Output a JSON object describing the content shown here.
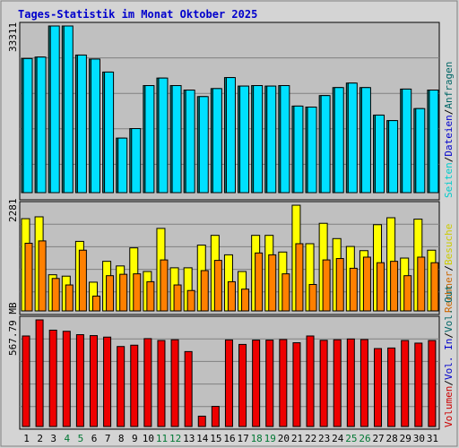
{
  "title": "Tages-Statistik im Monat Oktober 2025",
  "colors": {
    "title": "#0000cc",
    "panel_bg": "#c0c0c0",
    "outer_bg": "#d4d4d4",
    "grid": "#808080",
    "anfragen": "#006666",
    "dateien": "#0000cc",
    "seiten": "#00cccc",
    "besuche": "#cccc00",
    "rechner": "#cc6600",
    "volumen": "#cc0000",
    "vol_in": "#0000cc",
    "vol_out": "#006666",
    "bar_dateien": "#008080",
    "bar_seiten": "#00e0ff",
    "bar_besuche": "#ffff00",
    "bar_rechner": "#ff8000",
    "bar_volumen": "#ee0000",
    "day_black": "#000000",
    "day_weekend": "#007733"
  },
  "chart_data": [
    {
      "type": "bar",
      "panel": "hits",
      "max_label": "33311",
      "ylim": [
        0,
        33311
      ],
      "grid": true,
      "categories": [
        "1",
        "2",
        "3",
        "4",
        "5",
        "6",
        "7",
        "8",
        "9",
        "10",
        "11",
        "12",
        "13",
        "14",
        "15",
        "16",
        "17",
        "18",
        "19",
        "20",
        "21",
        "22",
        "23",
        "24",
        "25",
        "26",
        "27",
        "28",
        "29",
        "30",
        "31"
      ],
      "legend": [
        "Anfragen",
        "Dateien",
        "Seiten"
      ],
      "series": [
        {
          "name": "Dateien",
          "values": [
            26800,
            27100,
            33311,
            33311,
            27500,
            26700,
            24100,
            10900,
            12800,
            21400,
            22900,
            21400,
            20500,
            19200,
            20800,
            23000,
            21300,
            21400,
            21300,
            21400,
            17300,
            17100,
            19400,
            21000,
            21900,
            21000,
            15500,
            14400,
            20700,
            16800,
            20500
          ]
        },
        {
          "name": "Seiten",
          "values": [
            26800,
            27100,
            33311,
            33311,
            27500,
            26700,
            24100,
            10900,
            12800,
            21400,
            22900,
            21400,
            20500,
            19200,
            20800,
            23000,
            21300,
            21400,
            21300,
            21400,
            17300,
            17100,
            19400,
            21000,
            21900,
            21000,
            15500,
            14400,
            20700,
            16800,
            20500
          ]
        }
      ]
    },
    {
      "type": "bar",
      "panel": "visits",
      "max_label": "2281",
      "ylim": [
        0,
        2281
      ],
      "grid": true,
      "categories": [
        "1",
        "2",
        "3",
        "4",
        "5",
        "6",
        "7",
        "8",
        "9",
        "10",
        "11",
        "12",
        "13",
        "14",
        "15",
        "16",
        "17",
        "18",
        "19",
        "20",
        "21",
        "22",
        "23",
        "24",
        "25",
        "26",
        "27",
        "28",
        "29",
        "30",
        "31"
      ],
      "legend": [
        "Besuche",
        "Rechner"
      ],
      "series": [
        {
          "name": "Besuche",
          "values": [
            1990,
            2030,
            780,
            750,
            1500,
            620,
            1070,
            970,
            1360,
            850,
            1780,
            930,
            930,
            1420,
            1630,
            1210,
            850,
            1630,
            1630,
            1270,
            2280,
            1450,
            1890,
            1560,
            1390,
            1300,
            1860,
            2010,
            1140,
            1980,
            1310
          ]
        },
        {
          "name": "Rechner",
          "values": [
            1460,
            1510,
            700,
            560,
            1310,
            320,
            760,
            790,
            800,
            630,
            1100,
            560,
            440,
            870,
            1090,
            630,
            470,
            1250,
            1210,
            800,
            1450,
            570,
            1100,
            1130,
            920,
            1160,
            1040,
            1070,
            760,
            1160,
            1040
          ]
        }
      ]
    },
    {
      "type": "bar",
      "panel": "volume",
      "max_label": "567.79 MB",
      "ylim": [
        0,
        567.79
      ],
      "grid": true,
      "categories": [
        "1",
        "2",
        "3",
        "4",
        "5",
        "6",
        "7",
        "8",
        "9",
        "10",
        "11",
        "12",
        "13",
        "14",
        "15",
        "16",
        "17",
        "18",
        "19",
        "20",
        "21",
        "22",
        "23",
        "24",
        "25",
        "26",
        "27",
        "28",
        "29",
        "30",
        "31"
      ],
      "legend": [
        "Volumen",
        "Vol. In",
        "Vol. Out"
      ],
      "series": [
        {
          "name": "Volumen",
          "values": [
            482,
            567.79,
            513,
            507,
            489,
            484,
            476,
            426,
            433,
            468,
            458,
            462,
            399,
            55,
            107,
            461,
            437,
            460,
            460,
            463,
            446,
            482,
            459,
            462,
            466,
            463,
            415,
            418,
            458,
            444,
            458
          ]
        }
      ]
    }
  ],
  "x_axis": {
    "labels": [
      "1",
      "2",
      "3",
      "4",
      "5",
      "6",
      "7",
      "8",
      "9",
      "10",
      "11",
      "12",
      "13",
      "14",
      "15",
      "16",
      "17",
      "18",
      "19",
      "20",
      "21",
      "22",
      "23",
      "24",
      "25",
      "26",
      "27",
      "28",
      "29",
      "30",
      "31"
    ],
    "weekend_days": [
      4,
      5,
      11,
      12,
      18,
      19,
      25,
      26
    ]
  }
}
